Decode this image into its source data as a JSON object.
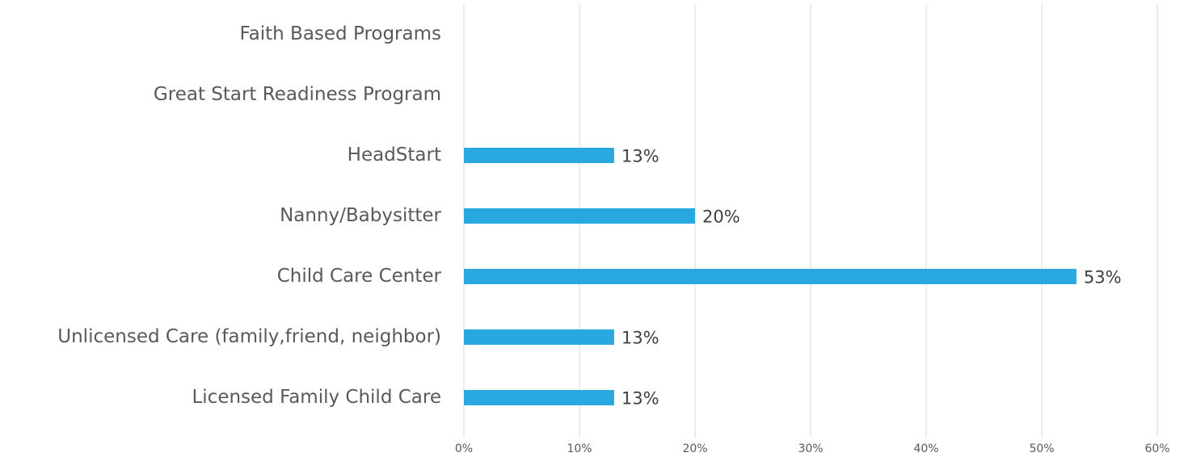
{
  "chart_data": {
    "type": "barh",
    "categories": [
      "Faith Based Programs",
      "Great Start Readiness Program",
      "HeadStart",
      "Nanny/Babysitter",
      "Child Care Center",
      "Unlicensed Care (family,friend, neighbor)",
      "Licensed Family Child Care"
    ],
    "values": [
      0,
      0,
      13,
      20,
      53,
      13,
      13
    ],
    "value_labels": [
      null,
      null,
      "13%",
      "20%",
      "53%",
      "13%",
      "13%"
    ],
    "color": "#29a8e0",
    "xlim": [
      0,
      60
    ],
    "xticks": [
      {
        "value": 0,
        "label": "0%"
      },
      {
        "value": 10,
        "label": "10%"
      },
      {
        "value": 20,
        "label": "20%"
      },
      {
        "value": 30,
        "label": "30%"
      },
      {
        "value": 40,
        "label": "40%"
      },
      {
        "value": 50,
        "label": "50%"
      },
      {
        "value": 60,
        "label": "60%"
      }
    ],
    "grid": true
  }
}
